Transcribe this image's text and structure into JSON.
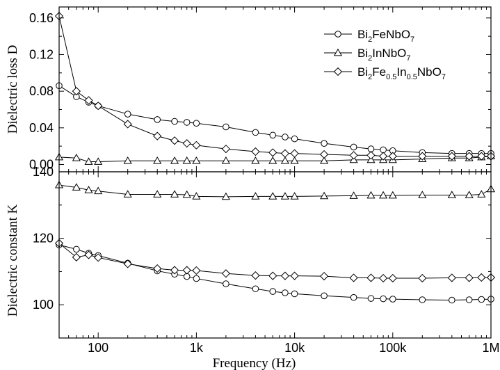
{
  "chart_data": [
    {
      "type": "line",
      "panel": "top",
      "ylabel": "Dielectric loss  D",
      "x_scale": "log",
      "xlim": [
        40,
        1000000
      ],
      "ylim": [
        -0.008,
        0.172
      ],
      "yticks": [
        0.0,
        0.04,
        0.08,
        0.12,
        0.16
      ],
      "ytick_labels": [
        "0.00",
        "0.04",
        "0.08",
        "0.12",
        "0.16"
      ],
      "grid": false,
      "legend_position": "top-right",
      "series": [
        {
          "name": "Bi2FeNbO7",
          "legend_parts": [
            [
              "Bi",
              false
            ],
            [
              "2",
              true
            ],
            [
              "FeNbO",
              false
            ],
            [
              "7",
              true
            ]
          ],
          "marker": "circle",
          "x": [
            40,
            60,
            80,
            100,
            200,
            400,
            600,
            800,
            1000,
            2000,
            4000,
            6000,
            8000,
            10000,
            20000,
            40000,
            60000,
            80000,
            100000,
            200000,
            400000,
            600000,
            800000,
            1000000
          ],
          "y": [
            0.086,
            0.074,
            0.068,
            0.064,
            0.055,
            0.049,
            0.047,
            0.046,
            0.045,
            0.041,
            0.035,
            0.032,
            0.03,
            0.028,
            0.023,
            0.019,
            0.017,
            0.016,
            0.015,
            0.013,
            0.012,
            0.012,
            0.012,
            0.012
          ]
        },
        {
          "name": "Bi2InNbO7",
          "legend_parts": [
            [
              "Bi",
              false
            ],
            [
              "2",
              true
            ],
            [
              "InNbO",
              false
            ],
            [
              "7",
              true
            ]
          ],
          "marker": "triangle",
          "x": [
            40,
            60,
            80,
            100,
            200,
            400,
            600,
            800,
            1000,
            2000,
            4000,
            6000,
            8000,
            10000,
            20000,
            40000,
            60000,
            80000,
            100000,
            200000,
            400000,
            600000,
            800000,
            1000000
          ],
          "y": [
            0.008,
            0.007,
            0.003,
            0.003,
            0.004,
            0.004,
            0.004,
            0.004,
            0.004,
            0.004,
            0.004,
            0.004,
            0.004,
            0.004,
            0.004,
            0.005,
            0.005,
            0.005,
            0.005,
            0.006,
            0.007,
            0.007,
            0.008,
            0.009
          ]
        },
        {
          "name": "Bi2Fe0.5In0.5NbO7",
          "legend_parts": [
            [
              "Bi",
              false
            ],
            [
              "2",
              true
            ],
            [
              "Fe",
              false
            ],
            [
              "0.5",
              true
            ],
            [
              "In",
              false
            ],
            [
              "0.5",
              true
            ],
            [
              "NbO",
              false
            ],
            [
              "7",
              true
            ]
          ],
          "marker": "diamond",
          "x": [
            40,
            60,
            80,
            100,
            200,
            400,
            600,
            800,
            1000,
            2000,
            4000,
            6000,
            8000,
            10000,
            20000,
            40000,
            60000,
            80000,
            100000,
            200000,
            400000,
            600000,
            800000,
            1000000
          ],
          "y": [
            0.162,
            0.08,
            0.07,
            0.064,
            0.044,
            0.031,
            0.026,
            0.023,
            0.021,
            0.017,
            0.014,
            0.013,
            0.012,
            0.012,
            0.011,
            0.01,
            0.01,
            0.009,
            0.009,
            0.009,
            0.009,
            0.009,
            0.009,
            0.009
          ]
        }
      ]
    },
    {
      "type": "line",
      "panel": "bottom",
      "xlabel": "Frequency  (Hz)",
      "ylabel": "Dielectric constant  K",
      "x_scale": "log",
      "xlim": [
        40,
        1000000
      ],
      "ylim": [
        90,
        140
      ],
      "yticks": [
        100,
        120,
        140
      ],
      "ytick_labels": [
        "100",
        "120",
        "140"
      ],
      "xticks": [
        100,
        1000,
        10000,
        100000,
        1000000
      ],
      "xtick_labels": [
        "100",
        "1k",
        "10k",
        "100k",
        "1M"
      ],
      "grid": false,
      "series": [
        {
          "name": "Bi2FeNbO7",
          "marker": "circle",
          "x": [
            40,
            60,
            80,
            100,
            200,
            400,
            600,
            800,
            1000,
            2000,
            4000,
            6000,
            8000,
            10000,
            20000,
            40000,
            60000,
            80000,
            100000,
            200000,
            400000,
            600000,
            800000,
            1000000
          ],
          "y": [
            118,
            116.7,
            115.5,
            114.8,
            112.5,
            110.2,
            109.2,
            108.5,
            107.9,
            106.3,
            104.8,
            104,
            103.6,
            103.3,
            102.7,
            102.2,
            101.9,
            101.8,
            101.7,
            101.5,
            101.4,
            101.5,
            101.6,
            101.7
          ]
        },
        {
          "name": "Bi2InNbO7",
          "marker": "triangle",
          "x": [
            40,
            60,
            80,
            100,
            200,
            400,
            600,
            800,
            1000,
            2000,
            4000,
            6000,
            8000,
            10000,
            20000,
            40000,
            60000,
            80000,
            100000,
            200000,
            400000,
            600000,
            800000,
            1000000
          ],
          "y": [
            136,
            135.3,
            134.5,
            134.2,
            133.2,
            133.2,
            133.2,
            133.1,
            132.6,
            132.5,
            132.6,
            132.6,
            132.6,
            132.6,
            132.7,
            132.8,
            132.9,
            132.9,
            132.9,
            133,
            133,
            133,
            133.2,
            134.8
          ]
        },
        {
          "name": "Bi2Fe0.5In0.5NbO7",
          "marker": "diamond",
          "x": [
            40,
            60,
            80,
            100,
            200,
            400,
            600,
            800,
            1000,
            2000,
            4000,
            6000,
            8000,
            10000,
            20000,
            40000,
            60000,
            80000,
            100000,
            200000,
            400000,
            600000,
            800000,
            1000000
          ],
          "y": [
            118.5,
            114.3,
            115,
            114.2,
            112.3,
            110.9,
            110.4,
            110.4,
            110.3,
            109.4,
            108.8,
            108.7,
            108.7,
            108.7,
            108.6,
            108.1,
            108.1,
            108,
            108,
            108,
            108.1,
            108.1,
            108.2,
            108.2
          ]
        }
      ]
    }
  ]
}
